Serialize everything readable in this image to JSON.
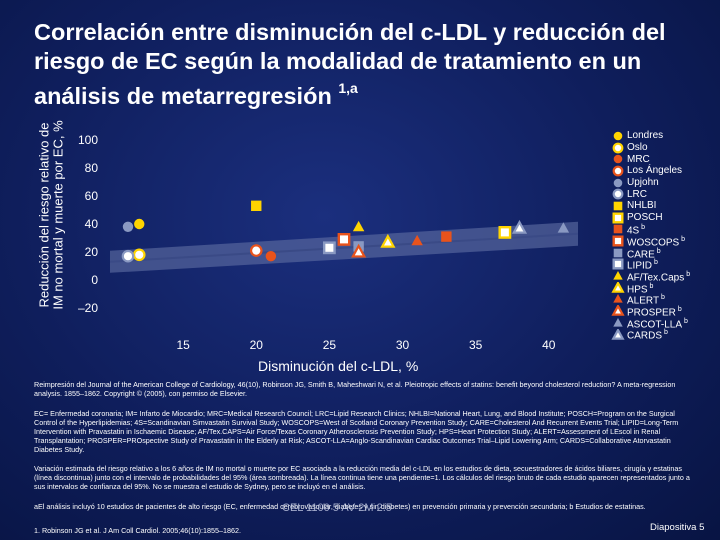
{
  "title": {
    "text": "Correlación entre disminución del c-LDL y reducción del riesgo de EC según la modalidad de tratamiento en un análisis de metarregresión",
    "superscript": "1,a"
  },
  "chart_data": {
    "type": "scatter",
    "xlabel": "Disminución del c-LDL, %",
    "ylabel": "Reducción del riesgo relativo de IM no mortal y muerte por EC, %",
    "xlim": [
      10,
      42
    ],
    "ylim": [
      -20,
      100
    ],
    "x_ticks": [
      "15",
      "20",
      "25",
      "30",
      "35",
      "40"
    ],
    "y_ticks": [
      "100",
      "80",
      "60",
      "40",
      "20",
      "0",
      "–20"
    ],
    "regression": {
      "x": [
        10,
        42
      ],
      "y": [
        13,
        33
      ]
    },
    "series": [
      {
        "name": "Londres",
        "marker": "circle",
        "fill": "#ffd400",
        "x": 12,
        "y": 40
      },
      {
        "name": "Oslo",
        "marker": "circle-open",
        "fill": "#ffd400",
        "x": 12,
        "y": 18
      },
      {
        "name": "MRC",
        "marker": "circle",
        "fill": "#e8531c",
        "x": 21,
        "y": 17
      },
      {
        "name": "Los Ángeles",
        "marker": "circle-open",
        "fill": "#e8531c",
        "x": 20,
        "y": 21
      },
      {
        "name": "Upjohn",
        "marker": "circle",
        "fill": "#8a99c2",
        "x": 5,
        "y": 38
      },
      {
        "name": "LRC",
        "marker": "circle-open",
        "fill": "#8a99c2",
        "x": 5,
        "y": 17
      },
      {
        "name": "NHLBI",
        "marker": "square",
        "fill": "#ffd400",
        "x": 20,
        "y": 53
      },
      {
        "name": "POSCH",
        "marker": "square-open",
        "fill": "#ffd400",
        "x": 37,
        "y": 34
      },
      {
        "name": "4S",
        "marker": "square",
        "fill": "#e8531c",
        "x": 33,
        "y": 31
      },
      {
        "name": "WOSCOPS",
        "marker": "square-open",
        "fill": "#e8531c",
        "x": 26,
        "y": 29
      },
      {
        "name": "CARE",
        "marker": "square",
        "fill": "#8a99c2",
        "x": 27,
        "y": 24
      },
      {
        "name": "LIPID",
        "marker": "square-open",
        "fill": "#8a99c2",
        "x": 25,
        "y": 23
      },
      {
        "name": "AF/Tex.Caps",
        "marker": "triangle",
        "fill": "#ffd400",
        "x": 27,
        "y": 38
      },
      {
        "name": "HPS",
        "marker": "triangle-open",
        "fill": "#ffd400",
        "x": 29,
        "y": 27
      },
      {
        "name": "ALERT",
        "marker": "triangle",
        "fill": "#e8531c",
        "x": 31,
        "y": 28
      },
      {
        "name": "PROSPER",
        "marker": "triangle-open",
        "fill": "#e8531c",
        "x": 27,
        "y": 20
      },
      {
        "name": "ASCOT-LLA",
        "marker": "triangle",
        "fill": "#8a99c2",
        "x": 41,
        "y": 37
      },
      {
        "name": "CARDS",
        "marker": "triangle-open",
        "fill": "#8a99c2",
        "x": 38,
        "y": 37
      }
    ],
    "legend_superscripts": [
      "",
      "",
      "",
      "",
      "",
      "",
      "",
      "",
      "b",
      "b",
      "b",
      "b",
      "b",
      "b",
      "b",
      "b",
      "b",
      "b"
    ]
  },
  "footnotes": {
    "reproduction": "Reimpresión del Journal of the American College of Cardiology, 46(10), Robinson JG, Smith B, Maheshwari N, et al. Pleiotropic effects of statins: benefit beyond cholesterol reduction? A meta-regression analysis. 1855–1862. Copyright © (2005), con permiso de Elsevier.",
    "abbreviations": "EC= Enfermedad coronaria; IM= Infarto de Miocardio; MRC=Medical Research Council; LRC=Lipid Research Clinics; NHLBI=National Heart, Lung, and Blood Institute; POSCH=Program on the Surgical Control of the Hyperlipidemias; 4S=Scandinavian Simvastatin Survival Study; WOSCOPS=West of Scotland Coronary Prevention Study; CARE=Cholesterol And Recurrent Events Trial; LIPID=Long-Term Intervention with Pravastatin in Ischaemic Disease; AF/Tex.CAPS=Air Force/Texas Coronary Atherosclerosis Prevention Study; HPS=Heart Protection Study; ALERT=Assessment of LEscol in Renal Transplantation; PROSPER=PROspective Study of Pravastatin in the Elderly at Risk; ASCOT-LLA=Anglo-Scandinavian Cardiac Outcomes Trial–Lipid Lowering Arm; CARDS=Collaborative Atorvastatin Diabetes Study.",
    "variation": "Variación estimada del riesgo relativo a los 6 años de IM no mortal o muerte por EC asociada a la reducción media del c-LDL en los estudios de dieta, secuestradores de ácidos biliares, cirugía y estatinas (línea discontinua) junto con el intervalo de probabilidades del 95% (área sombreada). La línea continua tiene una pendiente=1. Los cálculos del riesgo bruto de cada estudio aparecen representados junto a sus intervalos de confianza del 95%. No se muestra el estudio de Sydney, pero se incluyó en el análisis.",
    "note_a": "aEl análisis incluyó 10 estudios de pacientes de alto riesgo (EC, enfermedad cerebrovascular, diabetes y sin diabetes) en prevención primaria y prevención secundaria; b Estudios de estatinas.",
    "reference": "1. Robinson JG et al. J Am Coll Cardiol. 2005;46(10):1855–1862.",
    "watermark": "CEL 1100 5 AV 2M 2.5",
    "slide_number": "Diapositiva 5"
  }
}
